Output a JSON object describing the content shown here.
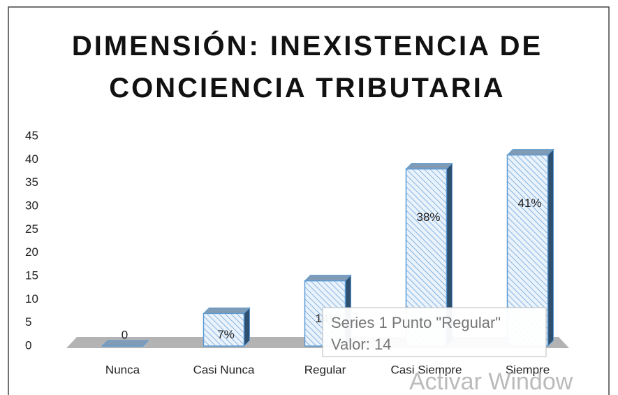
{
  "chart_data": {
    "type": "bar3d",
    "title": "DIMENSIÓN: INEXISTENCIA DE CONCIENCIA TRIBUTARIA",
    "categories": [
      "Nunca",
      "Casi Nunca",
      "Regular",
      "Casi Siempre",
      "Siempre"
    ],
    "values": [
      0,
      7,
      14,
      38,
      41
    ],
    "value_labels": [
      "0",
      "7%",
      "14%",
      "38%",
      "41%"
    ],
    "color": "#5b9bd5",
    "ylim": [
      0,
      45
    ],
    "yticks": [
      0,
      5,
      10,
      15,
      20,
      25,
      30,
      35,
      40,
      45
    ],
    "grid": false,
    "tooltip": {
      "line1": "Series 1 Punto \"Regular\"",
      "line2": "Valor: 14"
    }
  },
  "watermark": "Activar Window"
}
